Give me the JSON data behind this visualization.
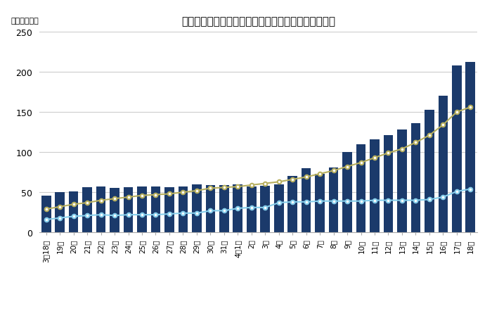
{
  "title": "《日本国内における新型コロナウイルスの重症者数》",
  "title_display": "【日本国内における新型コロナウイルスの重症者数】",
  "unit_label": "（単位：人）",
  "x_labels": [
    "3月18日",
    "19日",
    "20日",
    "21日",
    "22日",
    "23日",
    "24日",
    "25日",
    "26日",
    "27日",
    "28日",
    "29日",
    "30日",
    "31日",
    "4月1日",
    "2日",
    "3日",
    "4日",
    "5日",
    "6日",
    "7日",
    "8日",
    "9日",
    "10日",
    "11日",
    "12日",
    "13日",
    "14日",
    "15日",
    "16日",
    "17日",
    "18日"
  ],
  "hospitalized_severe": [
    46,
    50,
    51,
    56,
    57,
    55,
    56,
    57,
    57,
    56,
    57,
    60,
    59,
    59,
    60,
    57,
    58,
    60,
    70,
    80,
    73,
    81,
    100,
    110,
    116,
    121,
    128,
    136,
    153,
    170,
    208,
    212
  ],
  "deaths": [
    29,
    32,
    35,
    37,
    40,
    42,
    44,
    46,
    47,
    48,
    50,
    52,
    55,
    56,
    57,
    59,
    61,
    63,
    66,
    69,
    73,
    77,
    82,
    87,
    93,
    99,
    104,
    112,
    121,
    134,
    150,
    156
  ],
  "recovered_severe": [
    16,
    18,
    20,
    21,
    22,
    21,
    22,
    22,
    22,
    23,
    24,
    24,
    27,
    27,
    30,
    31,
    31,
    37,
    38,
    38,
    39,
    39,
    39,
    39,
    40,
    40,
    40,
    40,
    41,
    44,
    51,
    54
  ],
  "bar_color": "#1b3a6b",
  "deaths_color": "#b8b060",
  "recovered_color": "#87ceeb",
  "ylim": [
    0,
    250
  ],
  "yticks": [
    0,
    50,
    100,
    150,
    200,
    250
  ],
  "background_color": "#ffffff",
  "grid_color": "#cccccc"
}
